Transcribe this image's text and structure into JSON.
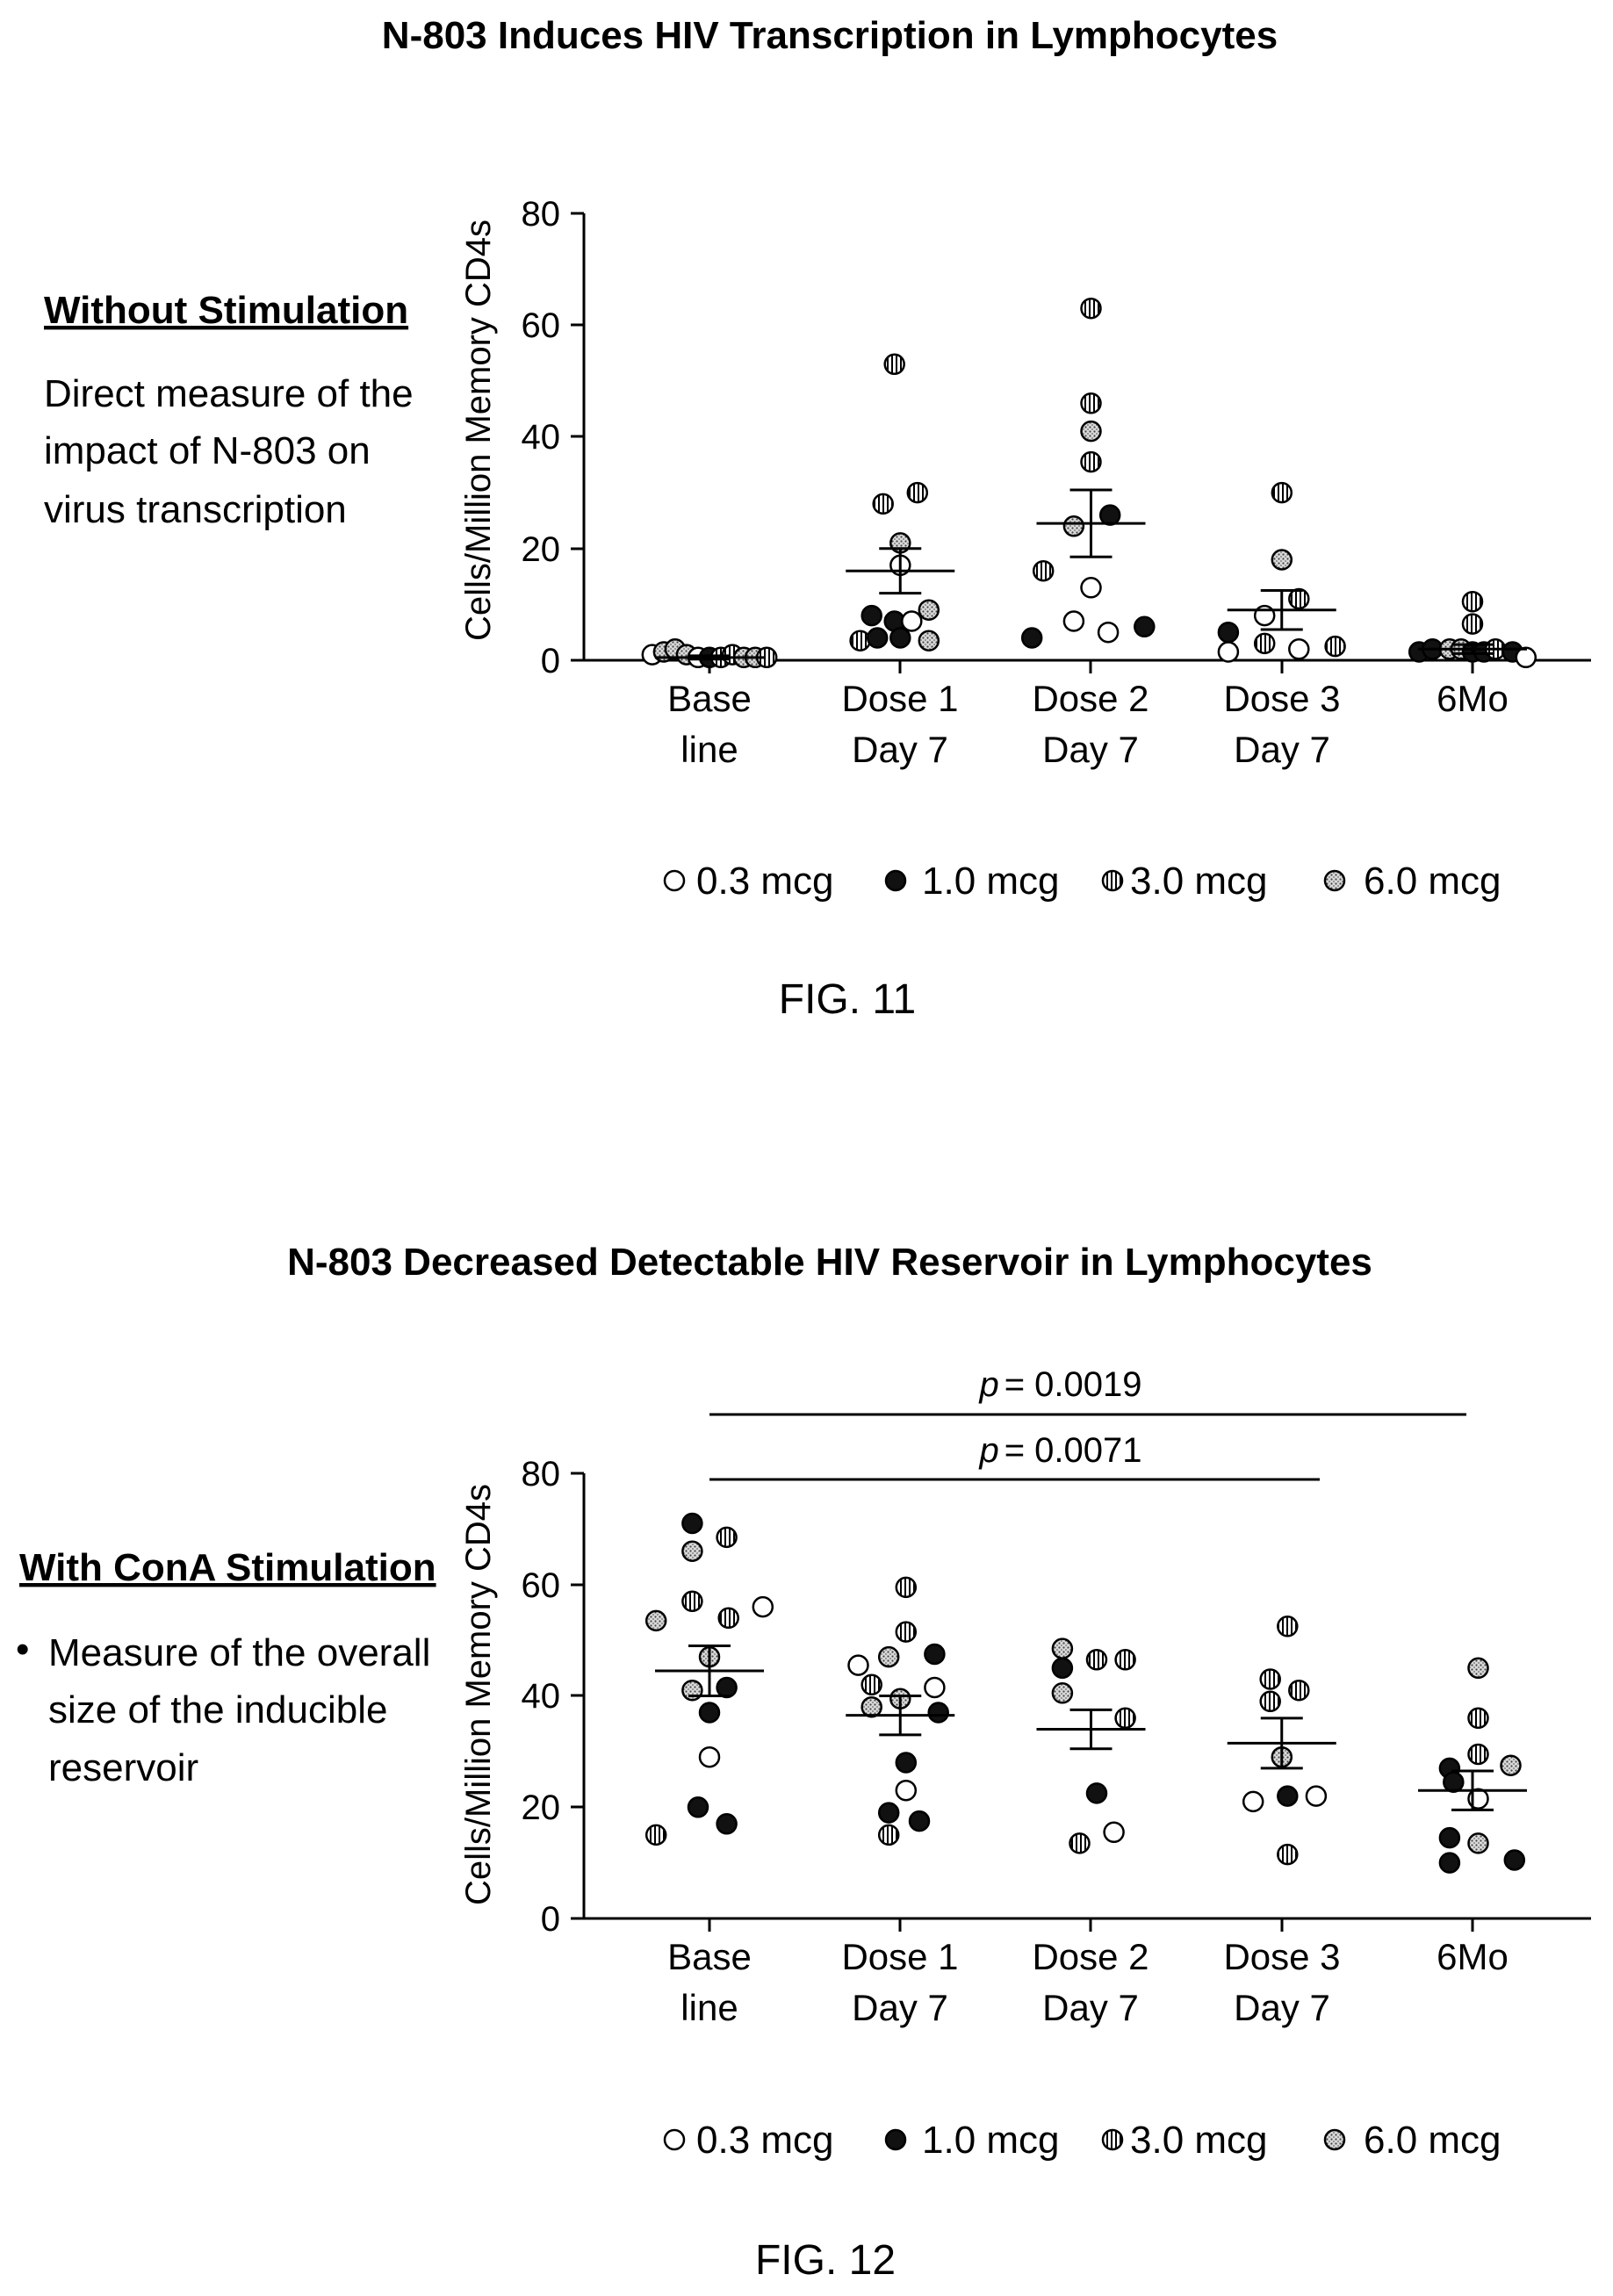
{
  "chart_data": [
    {
      "type": "scatter",
      "title": "N-803 Induces HIV Transcription in Lymphocytes",
      "side_heading": "Without Stimulation",
      "side_text": [
        "Direct measure of the",
        "impact of N-803 on",
        "virus transcription"
      ],
      "side_bullet": "",
      "ylabel": "Cells/Million Memory CD4s",
      "xlabel": "",
      "ylim": [
        0,
        80
      ],
      "yticks": [
        "0",
        "20",
        "40",
        "60",
        "80"
      ],
      "categories": [
        [
          "Base",
          "line"
        ],
        [
          "Dose 1",
          "Day 7"
        ],
        [
          "Dose 2",
          "Day 7"
        ],
        [
          "Dose 3",
          "Day 7"
        ],
        [
          "6Mo"
        ]
      ],
      "legend": [
        {
          "label": "0.3 mcg",
          "style": "open"
        },
        {
          "label": "1.0 mcg",
          "style": "filled"
        },
        {
          "label": "3.0 mcg",
          "style": "striped"
        },
        {
          "label": "6.0 mcg",
          "style": "dotted"
        }
      ],
      "figure_label": "FIG. 11",
      "means": [
        0.5,
        16,
        24.5,
        9,
        2
      ],
      "sems": [
        0.3,
        4,
        6,
        3.5,
        0.8
      ],
      "points": [
        {
          "cat": 0,
          "dx": -0.3,
          "y": 1,
          "s": "open"
        },
        {
          "cat": 0,
          "dx": -0.24,
          "y": 1.5,
          "s": "dotted"
        },
        {
          "cat": 0,
          "dx": -0.18,
          "y": 2,
          "s": "dotted"
        },
        {
          "cat": 0,
          "dx": -0.12,
          "y": 1,
          "s": "dotted"
        },
        {
          "cat": 0,
          "dx": -0.06,
          "y": 0.5,
          "s": "open"
        },
        {
          "cat": 0,
          "dx": 0.0,
          "y": 0.5,
          "s": "filled"
        },
        {
          "cat": 0,
          "dx": 0.06,
          "y": 0.5,
          "s": "striped"
        },
        {
          "cat": 0,
          "dx": 0.12,
          "y": 1,
          "s": "striped"
        },
        {
          "cat": 0,
          "dx": 0.18,
          "y": 0.5,
          "s": "dotted"
        },
        {
          "cat": 0,
          "dx": 0.24,
          "y": 0.5,
          "s": "dotted"
        },
        {
          "cat": 0,
          "dx": 0.3,
          "y": 0.5,
          "s": "striped"
        },
        {
          "cat": 1,
          "dx": -0.03,
          "y": 53,
          "s": "striped"
        },
        {
          "cat": 1,
          "dx": -0.09,
          "y": 28,
          "s": "striped"
        },
        {
          "cat": 1,
          "dx": 0.09,
          "y": 30,
          "s": "striped"
        },
        {
          "cat": 1,
          "dx": 0.0,
          "y": 21,
          "s": "dotted"
        },
        {
          "cat": 1,
          "dx": 0.0,
          "y": 17,
          "s": "open"
        },
        {
          "cat": 1,
          "dx": -0.15,
          "y": 8,
          "s": "filled"
        },
        {
          "cat": 1,
          "dx": -0.03,
          "y": 7,
          "s": "filled"
        },
        {
          "cat": 1,
          "dx": 0.15,
          "y": 9,
          "s": "dotted"
        },
        {
          "cat": 1,
          "dx": 0.06,
          "y": 7,
          "s": "open"
        },
        {
          "cat": 1,
          "dx": -0.21,
          "y": 3.5,
          "s": "striped"
        },
        {
          "cat": 1,
          "dx": -0.12,
          "y": 4,
          "s": "filled"
        },
        {
          "cat": 1,
          "dx": 0.0,
          "y": 4,
          "s": "filled"
        },
        {
          "cat": 1,
          "dx": 0.15,
          "y": 3.5,
          "s": "dotted"
        },
        {
          "cat": 2,
          "dx": 0.0,
          "y": 63,
          "s": "striped"
        },
        {
          "cat": 2,
          "dx": 0.0,
          "y": 46,
          "s": "striped"
        },
        {
          "cat": 2,
          "dx": 0.0,
          "y": 41,
          "s": "dotted"
        },
        {
          "cat": 2,
          "dx": 0.0,
          "y": 35.5,
          "s": "striped"
        },
        {
          "cat": 2,
          "dx": 0.1,
          "y": 26,
          "s": "filled"
        },
        {
          "cat": 2,
          "dx": -0.09,
          "y": 24,
          "s": "dotted"
        },
        {
          "cat": 2,
          "dx": -0.25,
          "y": 16,
          "s": "striped"
        },
        {
          "cat": 2,
          "dx": 0.0,
          "y": 13,
          "s": "open"
        },
        {
          "cat": 2,
          "dx": -0.31,
          "y": 4,
          "s": "filled"
        },
        {
          "cat": 2,
          "dx": -0.09,
          "y": 7,
          "s": "open"
        },
        {
          "cat": 2,
          "dx": 0.09,
          "y": 5,
          "s": "open"
        },
        {
          "cat": 2,
          "dx": 0.28,
          "y": 6,
          "s": "filled"
        },
        {
          "cat": 3,
          "dx": 0.0,
          "y": 30,
          "s": "striped"
        },
        {
          "cat": 3,
          "dx": 0.0,
          "y": 18,
          "s": "dotted"
        },
        {
          "cat": 3,
          "dx": 0.09,
          "y": 11,
          "s": "striped"
        },
        {
          "cat": 3,
          "dx": -0.09,
          "y": 8,
          "s": "open"
        },
        {
          "cat": 3,
          "dx": -0.28,
          "y": 5,
          "s": "filled"
        },
        {
          "cat": 3,
          "dx": -0.09,
          "y": 3,
          "s": "striped"
        },
        {
          "cat": 3,
          "dx": -0.28,
          "y": 1.5,
          "s": "open"
        },
        {
          "cat": 3,
          "dx": 0.09,
          "y": 2,
          "s": "open"
        },
        {
          "cat": 3,
          "dx": 0.28,
          "y": 2.5,
          "s": "striped"
        },
        {
          "cat": 4,
          "dx": 0.0,
          "y": 10.5,
          "s": "striped"
        },
        {
          "cat": 4,
          "dx": 0.0,
          "y": 6.5,
          "s": "striped"
        },
        {
          "cat": 4,
          "dx": -0.28,
          "y": 1.5,
          "s": "filled"
        },
        {
          "cat": 4,
          "dx": -0.21,
          "y": 2,
          "s": "filled"
        },
        {
          "cat": 4,
          "dx": -0.12,
          "y": 2,
          "s": "dotted"
        },
        {
          "cat": 4,
          "dx": -0.06,
          "y": 2,
          "s": "dotted"
        },
        {
          "cat": 4,
          "dx": 0.0,
          "y": 1.5,
          "s": "filled"
        },
        {
          "cat": 4,
          "dx": 0.06,
          "y": 1.5,
          "s": "filled"
        },
        {
          "cat": 4,
          "dx": 0.12,
          "y": 2,
          "s": "striped"
        },
        {
          "cat": 4,
          "dx": 0.21,
          "y": 1.5,
          "s": "filled"
        },
        {
          "cat": 4,
          "dx": 0.28,
          "y": 0.5,
          "s": "open"
        }
      ],
      "annotations": []
    },
    {
      "type": "scatter",
      "title": "N-803 Decreased Detectable HIV Reservoir in Lymphocytes",
      "side_heading": "With ConA Stimulation",
      "side_text": [
        "Measure of the overall",
        "size of the inducible",
        "reservoir"
      ],
      "side_bullet": "•",
      "ylabel": "Cells/Million Memory CD4s",
      "xlabel": "",
      "ylim": [
        0,
        80
      ],
      "yticks": [
        "0",
        "20",
        "40",
        "60",
        "80"
      ],
      "categories": [
        [
          "Base",
          "line"
        ],
        [
          "Dose 1",
          "Day 7"
        ],
        [
          "Dose 2",
          "Day 7"
        ],
        [
          "Dose 3",
          "Day 7"
        ],
        [
          "6Mo"
        ]
      ],
      "legend": [
        {
          "label": "0.3 mcg",
          "style": "open"
        },
        {
          "label": "1.0 mcg",
          "style": "filled"
        },
        {
          "label": "3.0 mcg",
          "style": "striped"
        },
        {
          "label": "6.0 mcg",
          "style": "dotted"
        }
      ],
      "figure_label": "FIG. 12",
      "means": [
        44.5,
        36.5,
        34,
        31.5,
        23
      ],
      "sems": [
        4.5,
        3.5,
        3.5,
        4.5,
        3.5
      ],
      "points": [
        {
          "cat": 0,
          "dx": -0.09,
          "y": 71,
          "s": "filled"
        },
        {
          "cat": 0,
          "dx": 0.09,
          "y": 68.5,
          "s": "striped"
        },
        {
          "cat": 0,
          "dx": -0.09,
          "y": 66,
          "s": "dotted"
        },
        {
          "cat": 0,
          "dx": -0.09,
          "y": 57,
          "s": "striped"
        },
        {
          "cat": 0,
          "dx": 0.28,
          "y": 56,
          "s": "open"
        },
        {
          "cat": 0,
          "dx": -0.28,
          "y": 53.5,
          "s": "dotted"
        },
        {
          "cat": 0,
          "dx": 0.1,
          "y": 54,
          "s": "striped"
        },
        {
          "cat": 0,
          "dx": 0.0,
          "y": 47,
          "s": "dotted"
        },
        {
          "cat": 0,
          "dx": -0.09,
          "y": 41,
          "s": "dotted"
        },
        {
          "cat": 0,
          "dx": 0.09,
          "y": 41.5,
          "s": "filled"
        },
        {
          "cat": 0,
          "dx": 0.0,
          "y": 37,
          "s": "filled"
        },
        {
          "cat": 0,
          "dx": 0.0,
          "y": 29,
          "s": "open"
        },
        {
          "cat": 0,
          "dx": -0.06,
          "y": 20,
          "s": "filled"
        },
        {
          "cat": 0,
          "dx": -0.28,
          "y": 15,
          "s": "striped"
        },
        {
          "cat": 0,
          "dx": 0.09,
          "y": 17,
          "s": "filled"
        },
        {
          "cat": 1,
          "dx": 0.03,
          "y": 59.5,
          "s": "striped"
        },
        {
          "cat": 1,
          "dx": 0.03,
          "y": 51.5,
          "s": "striped"
        },
        {
          "cat": 1,
          "dx": 0.18,
          "y": 47.5,
          "s": "filled"
        },
        {
          "cat": 1,
          "dx": -0.06,
          "y": 47,
          "s": "dotted"
        },
        {
          "cat": 1,
          "dx": -0.22,
          "y": 45.5,
          "s": "open"
        },
        {
          "cat": 1,
          "dx": -0.15,
          "y": 42,
          "s": "striped"
        },
        {
          "cat": 1,
          "dx": 0.18,
          "y": 41.5,
          "s": "open"
        },
        {
          "cat": 1,
          "dx": 0.0,
          "y": 39.5,
          "s": "dotted"
        },
        {
          "cat": 1,
          "dx": -0.15,
          "y": 38,
          "s": "dotted"
        },
        {
          "cat": 1,
          "dx": 0.2,
          "y": 37,
          "s": "filled"
        },
        {
          "cat": 1,
          "dx": 0.03,
          "y": 28,
          "s": "filled"
        },
        {
          "cat": 1,
          "dx": 0.03,
          "y": 23,
          "s": "open"
        },
        {
          "cat": 1,
          "dx": -0.06,
          "y": 19,
          "s": "filled"
        },
        {
          "cat": 1,
          "dx": -0.06,
          "y": 15,
          "s": "striped"
        },
        {
          "cat": 1,
          "dx": 0.1,
          "y": 17.5,
          "s": "filled"
        },
        {
          "cat": 2,
          "dx": -0.15,
          "y": 48.5,
          "s": "dotted"
        },
        {
          "cat": 2,
          "dx": 0.03,
          "y": 46.5,
          "s": "striped"
        },
        {
          "cat": 2,
          "dx": 0.18,
          "y": 46.5,
          "s": "striped"
        },
        {
          "cat": 2,
          "dx": -0.15,
          "y": 45,
          "s": "filled"
        },
        {
          "cat": 2,
          "dx": -0.15,
          "y": 40.5,
          "s": "dotted"
        },
        {
          "cat": 2,
          "dx": 0.18,
          "y": 36,
          "s": "striped"
        },
        {
          "cat": 2,
          "dx": 0.03,
          "y": 22.5,
          "s": "filled"
        },
        {
          "cat": 2,
          "dx": 0.12,
          "y": 15.5,
          "s": "open"
        },
        {
          "cat": 2,
          "dx": -0.06,
          "y": 13.5,
          "s": "striped"
        },
        {
          "cat": 3,
          "dx": 0.03,
          "y": 52.5,
          "s": "striped"
        },
        {
          "cat": 3,
          "dx": -0.06,
          "y": 43,
          "s": "striped"
        },
        {
          "cat": 3,
          "dx": 0.09,
          "y": 41,
          "s": "striped"
        },
        {
          "cat": 3,
          "dx": -0.06,
          "y": 39,
          "s": "striped"
        },
        {
          "cat": 3,
          "dx": 0.0,
          "y": 29,
          "s": "dotted"
        },
        {
          "cat": 3,
          "dx": -0.15,
          "y": 21,
          "s": "open"
        },
        {
          "cat": 3,
          "dx": 0.03,
          "y": 22,
          "s": "filled"
        },
        {
          "cat": 3,
          "dx": 0.18,
          "y": 22,
          "s": "open"
        },
        {
          "cat": 3,
          "dx": 0.03,
          "y": 11.5,
          "s": "striped"
        },
        {
          "cat": 4,
          "dx": 0.03,
          "y": 45,
          "s": "dotted"
        },
        {
          "cat": 4,
          "dx": 0.03,
          "y": 36,
          "s": "striped"
        },
        {
          "cat": 4,
          "dx": 0.03,
          "y": 29.5,
          "s": "striped"
        },
        {
          "cat": 4,
          "dx": 0.2,
          "y": 27.5,
          "s": "dotted"
        },
        {
          "cat": 4,
          "dx": -0.12,
          "y": 27,
          "s": "filled"
        },
        {
          "cat": 4,
          "dx": -0.1,
          "y": 24.5,
          "s": "filled"
        },
        {
          "cat": 4,
          "dx": 0.03,
          "y": 21.5,
          "s": "open"
        },
        {
          "cat": 4,
          "dx": -0.12,
          "y": 14.5,
          "s": "filled"
        },
        {
          "cat": 4,
          "dx": 0.03,
          "y": 13.5,
          "s": "dotted"
        },
        {
          "cat": 4,
          "dx": -0.12,
          "y": 10,
          "s": "filled"
        },
        {
          "cat": 4,
          "dx": 0.22,
          "y": 10.5,
          "s": "filled"
        }
      ],
      "annotations": [
        {
          "p_label": "p",
          "p_value": "= 0.0019",
          "from_cat": 0,
          "to_cat": 4
        },
        {
          "p_label": "p",
          "p_value": "= 0.0071",
          "from_cat": 0,
          "to_cat": 3
        }
      ]
    }
  ]
}
